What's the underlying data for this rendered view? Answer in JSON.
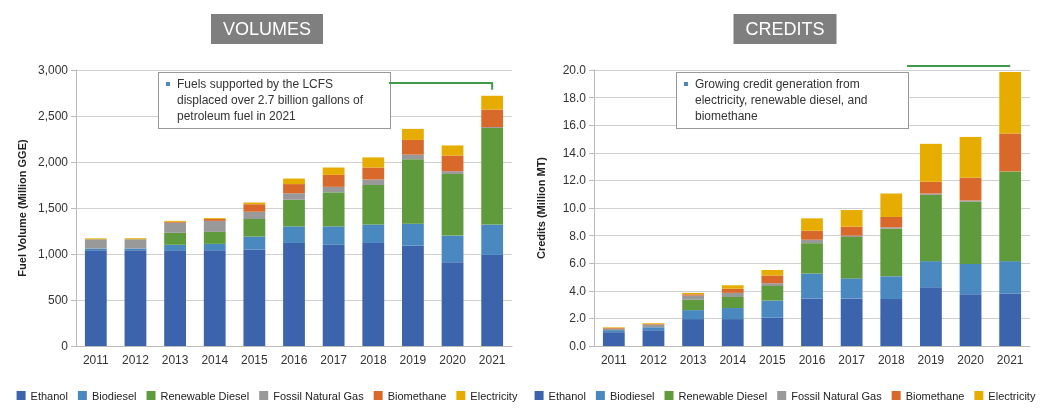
{
  "chart_data": [
    {
      "type": "bar",
      "title": "VOLUMES",
      "ylabel": "Fuel Volume (Million GGE)",
      "stacked": true,
      "grid": "y",
      "legend": "bottom",
      "categories": [
        "2011",
        "2012",
        "2013",
        "2014",
        "2015",
        "2016",
        "2017",
        "2018",
        "2019",
        "2020",
        "2021"
      ],
      "ylim": [
        0,
        3000
      ],
      "yticks": [
        0,
        500,
        {
          "value": 1000,
          "label": "1,000"
        },
        {
          "value": 1500,
          "label": "1,500"
        },
        {
          "value": 2000,
          "label": "2,000"
        },
        {
          "value": 2500,
          "label": "2,500"
        },
        {
          "value": 3000,
          "label": "3,000"
        }
      ],
      "annotations": [
        "Fuels supported by the LCFS displaced over 2.7 billion gallons of petroleum fuel in 2021"
      ],
      "series": [
        {
          "name": "Ethanol",
          "color": "#3b64ad",
          "values": [
            1040,
            1040,
            1040,
            1040,
            1050,
            1120,
            1100,
            1120,
            1090,
            910,
            990
          ]
        },
        {
          "name": "Biodiesel",
          "color": "#4a88c0",
          "values": [
            20,
            20,
            60,
            70,
            140,
            180,
            200,
            200,
            240,
            290,
            330
          ]
        },
        {
          "name": "Renewable Diesel",
          "color": "#5f9a3c",
          "values": [
            0,
            0,
            130,
            130,
            190,
            290,
            370,
            430,
            700,
            670,
            1050
          ]
        },
        {
          "name": "Fossil Natural Gas",
          "color": "#999999",
          "values": [
            100,
            100,
            110,
            120,
            80,
            70,
            60,
            60,
            50,
            30,
            10
          ]
        },
        {
          "name": "Biomethane",
          "color": "#d9692b",
          "values": [
            0,
            0,
            10,
            20,
            80,
            100,
            130,
            130,
            160,
            170,
            190
          ]
        },
        {
          "name": "Electricity",
          "color": "#e6ac00",
          "values": [
            10,
            10,
            10,
            10,
            20,
            60,
            80,
            110,
            120,
            110,
            150
          ]
        }
      ]
    },
    {
      "type": "bar",
      "title": "CREDITS",
      "ylabel": "Credits (Million MT)",
      "stacked": true,
      "grid": "y",
      "legend": "bottom",
      "categories": [
        "2011",
        "2012",
        "2013",
        "2014",
        "2015",
        "2016",
        "2017",
        "2018",
        "2019",
        "2020",
        "2021"
      ],
      "ylim": [
        0,
        20
      ],
      "yticks": [
        {
          "value": 0,
          "label": "0.0"
        },
        {
          "value": 2,
          "label": "2.0"
        },
        {
          "value": 4,
          "label": "4.0"
        },
        {
          "value": 6,
          "label": "6.0"
        },
        {
          "value": 8,
          "label": "8.0"
        },
        {
          "value": 10,
          "label": "10.0"
        },
        {
          "value": 12,
          "label": "12.0"
        },
        {
          "value": 14,
          "label": "14.0"
        },
        {
          "value": 16,
          "label": "16.0"
        },
        {
          "value": 18,
          "label": "18.0"
        },
        {
          "value": 20,
          "label": "20.0"
        }
      ],
      "annotations": [
        "Growing credit generation from electricity, renewable diesel, and biomethane"
      ],
      "series": [
        {
          "name": "Ethanol",
          "color": "#3b64ad",
          "values": [
            1.0,
            1.15,
            1.95,
            1.95,
            2.05,
            3.45,
            3.45,
            3.4,
            4.25,
            3.75,
            3.8
          ]
        },
        {
          "name": "Biodiesel",
          "color": "#4a88c0",
          "values": [
            0.15,
            0.2,
            0.65,
            0.8,
            1.25,
            1.8,
            1.45,
            1.65,
            1.9,
            2.2,
            2.35
          ]
        },
        {
          "name": "Renewable Diesel",
          "color": "#5f9a3c",
          "values": [
            0,
            0,
            0.75,
            0.8,
            1.05,
            2.2,
            3.0,
            3.45,
            4.8,
            4.5,
            6.5
          ]
        },
        {
          "name": "Fossil Natural Gas",
          "color": "#999999",
          "values": [
            0.1,
            0.2,
            0.3,
            0.3,
            0.2,
            0.25,
            0.1,
            0.1,
            0.1,
            0.1,
            0
          ]
        },
        {
          "name": "Biomethane",
          "color": "#d9692b",
          "values": [
            0.05,
            0.05,
            0.1,
            0.3,
            0.55,
            0.65,
            0.65,
            0.75,
            0.85,
            1.65,
            2.75
          ]
        },
        {
          "name": "Electricity",
          "color": "#e6ac00",
          "values": [
            0.05,
            0.05,
            0.1,
            0.25,
            0.4,
            0.9,
            1.2,
            1.7,
            2.75,
            2.95,
            4.45
          ]
        }
      ]
    }
  ]
}
